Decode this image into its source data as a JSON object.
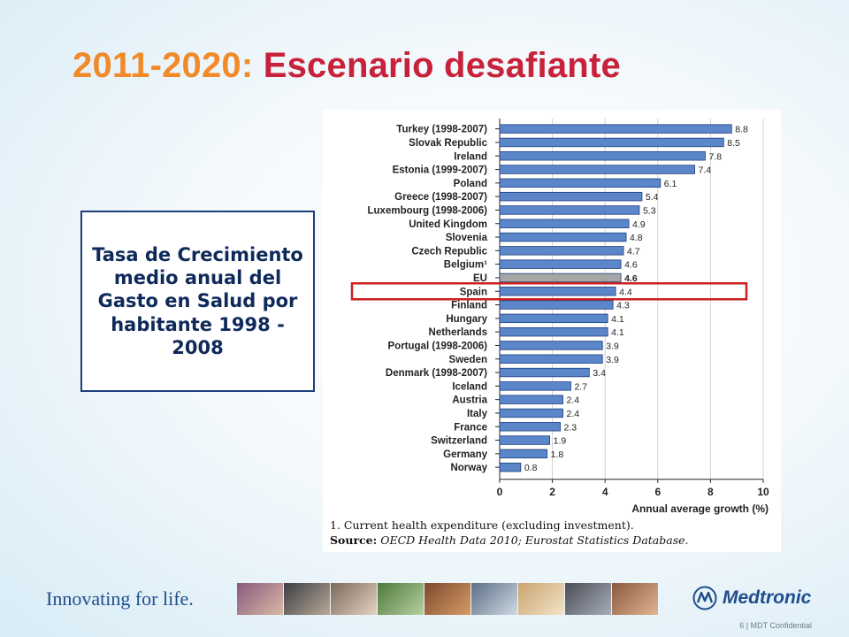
{
  "slide": {
    "title_years": "2011-2020:",
    "title_rest": "Escenario desafiante",
    "callout_text": "Tasa de Crecimiento medio anual del Gasto en Salud por habitante 1998 - 2008",
    "tagline": "Innovating for life.",
    "logo_text": "Medtronic",
    "page_label": "6 | MDT Confidential"
  },
  "colors": {
    "bar": "#5b86c9",
    "bar_stroke": "#1d3f7c",
    "eu_bar": "#a6a6a6",
    "highlight": "#cc1f1f",
    "title_orange": "#f28a2a",
    "title_red": "#c8213a"
  },
  "chart_data": {
    "type": "bar",
    "orientation": "horizontal",
    "categories": [
      "Turkey (1998-2007)",
      "Slovak Republic",
      "Ireland",
      "Estonia (1999-2007)",
      "Poland",
      "Greece (1998-2007)",
      "Luxembourg (1998-2006)",
      "United Kingdom",
      "Slovenia",
      "Czech Republic",
      "Belgium¹",
      "EU",
      "Spain",
      "Finland",
      "Hungary",
      "Netherlands",
      "Portugal (1998-2006)",
      "Sweden",
      "Denmark (1998-2007)",
      "Iceland",
      "Austria",
      "Italy",
      "France",
      "Switzerland",
      "Germany",
      "Norway"
    ],
    "values": [
      8.8,
      8.5,
      7.8,
      7.4,
      6.1,
      5.4,
      5.3,
      4.9,
      4.8,
      4.7,
      4.6,
      4.6,
      4.4,
      4.3,
      4.1,
      4.1,
      3.9,
      3.9,
      3.4,
      2.7,
      2.4,
      2.4,
      2.3,
      1.9,
      1.8,
      0.8
    ],
    "value_labels": [
      "8.8",
      "8.5",
      "7.8",
      "7.4",
      "6.1",
      "5.4",
      "5.3",
      "4.9",
      "4.8",
      "4.7",
      "4.6",
      "4.6",
      "4.4",
      "4.3",
      "4.1",
      "4.1",
      "3.9",
      "3.9",
      "3.4",
      "2.7",
      "2.4",
      "2.4",
      "2.3",
      "1.9",
      "1.8",
      "0.8"
    ],
    "xlabel": "Annual average growth (%)",
    "xlim": [
      0,
      10
    ],
    "xticks": [
      0,
      2,
      4,
      6,
      8,
      10
    ],
    "emphasized_category": "EU",
    "highlighted_category": "Spain",
    "footnote": "1.  Current health expenditure (excluding investment).",
    "source_label": "Source:",
    "source_text": "OECD Health Data 2010; Eurostat Statistics Database."
  }
}
